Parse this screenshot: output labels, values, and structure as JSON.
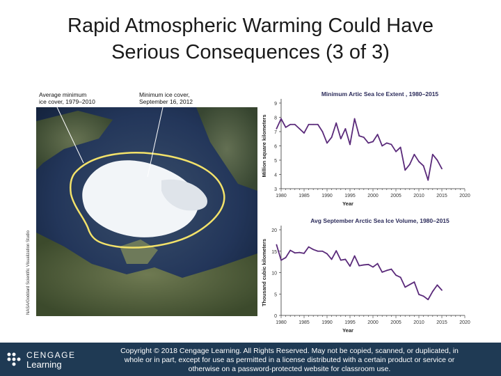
{
  "slide": {
    "title_line1": "Rapid Atmospheric Warming Could Have",
    "title_line2": "Serious Consequences (3 of 3)"
  },
  "photo": {
    "label_avg_line1": "Average minimum",
    "label_avg_line2": "ice cover, 1979–2010",
    "label_min_line1": "Minimum ice cover,",
    "label_min_line2": "September 16, 2012",
    "credit": "NASA/Goddard Scientific Visualization Studio"
  },
  "chart_data": [
    {
      "type": "line",
      "title": "Minimum Artic Sea Ice Extent , 1980–2015",
      "xlabel": "Year",
      "ylabel": "Million square kilometers",
      "xlim": [
        1980,
        2020
      ],
      "ylim": [
        3,
        9
      ],
      "xticks": [
        1980,
        1985,
        1990,
        1995,
        2000,
        2005,
        2010,
        2015,
        2020
      ],
      "yticks": [
        3,
        4,
        5,
        6,
        7,
        8,
        9
      ],
      "color": "#5a2a7a",
      "x": [
        1979,
        1980,
        1981,
        1982,
        1983,
        1984,
        1985,
        1986,
        1987,
        1988,
        1989,
        1990,
        1991,
        1992,
        1993,
        1994,
        1995,
        1996,
        1997,
        1998,
        1999,
        2000,
        2001,
        2002,
        2003,
        2004,
        2005,
        2006,
        2007,
        2008,
        2009,
        2010,
        2011,
        2012,
        2013,
        2014,
        2015
      ],
      "values": [
        7.2,
        7.9,
        7.3,
        7.5,
        7.5,
        7.2,
        6.9,
        7.5,
        7.5,
        7.5,
        7.0,
        6.2,
        6.6,
        7.6,
        6.5,
        7.2,
        6.1,
        7.9,
        6.7,
        6.6,
        6.2,
        6.3,
        6.8,
        6.0,
        6.2,
        6.1,
        5.6,
        5.9,
        4.3,
        4.7,
        5.4,
        4.9,
        4.6,
        3.6,
        5.4,
        5.0,
        4.4
      ]
    },
    {
      "type": "line",
      "title": "Avg September Arctic Sea Ice Volume, 1980–2015",
      "xlabel": "Year",
      "ylabel": "Thousand cubic kilometers",
      "xlim": [
        1980,
        2020
      ],
      "ylim": [
        0,
        20
      ],
      "xticks": [
        1980,
        1985,
        1990,
        1995,
        2000,
        2005,
        2010,
        2015,
        2020
      ],
      "yticks": [
        0,
        5,
        10,
        15,
        20
      ],
      "color": "#5a2a7a",
      "x": [
        1979,
        1980,
        1981,
        1982,
        1983,
        1984,
        1985,
        1986,
        1987,
        1988,
        1989,
        1990,
        1991,
        1992,
        1993,
        1994,
        1995,
        1996,
        1997,
        1998,
        1999,
        2000,
        2001,
        2002,
        2003,
        2004,
        2005,
        2006,
        2007,
        2008,
        2009,
        2010,
        2011,
        2012,
        2013,
        2014,
        2015
      ],
      "values": [
        16.5,
        12.9,
        13.5,
        15.2,
        14.6,
        14.7,
        14.5,
        16.0,
        15.4,
        15.0,
        15.0,
        14.4,
        13.1,
        15.1,
        12.9,
        13.1,
        11.5,
        13.9,
        11.6,
        11.8,
        11.9,
        11.3,
        12.1,
        10.1,
        10.5,
        10.8,
        9.4,
        8.9,
        6.6,
        7.2,
        7.8,
        4.9,
        4.5,
        3.7,
        5.6,
        7.1,
        5.9
      ]
    }
  ],
  "footer": {
    "brand_name": "CENGAGE",
    "brand_sub": "Learning",
    "copyright_line1": "Copyright © 2018 Cengage Learning. All Rights Reserved. May not be copied, scanned, or duplicated, in",
    "copyright_line2": "whole or in part, except for use as permitted in a license distributed with a certain product or service or",
    "copyright_line3": "otherwise on a password-protected website for classroom use."
  },
  "colors": {
    "footer_bg": "#1f3a54",
    "line": "#5a2a7a",
    "avg_ice_outline": "#f3e26a"
  }
}
